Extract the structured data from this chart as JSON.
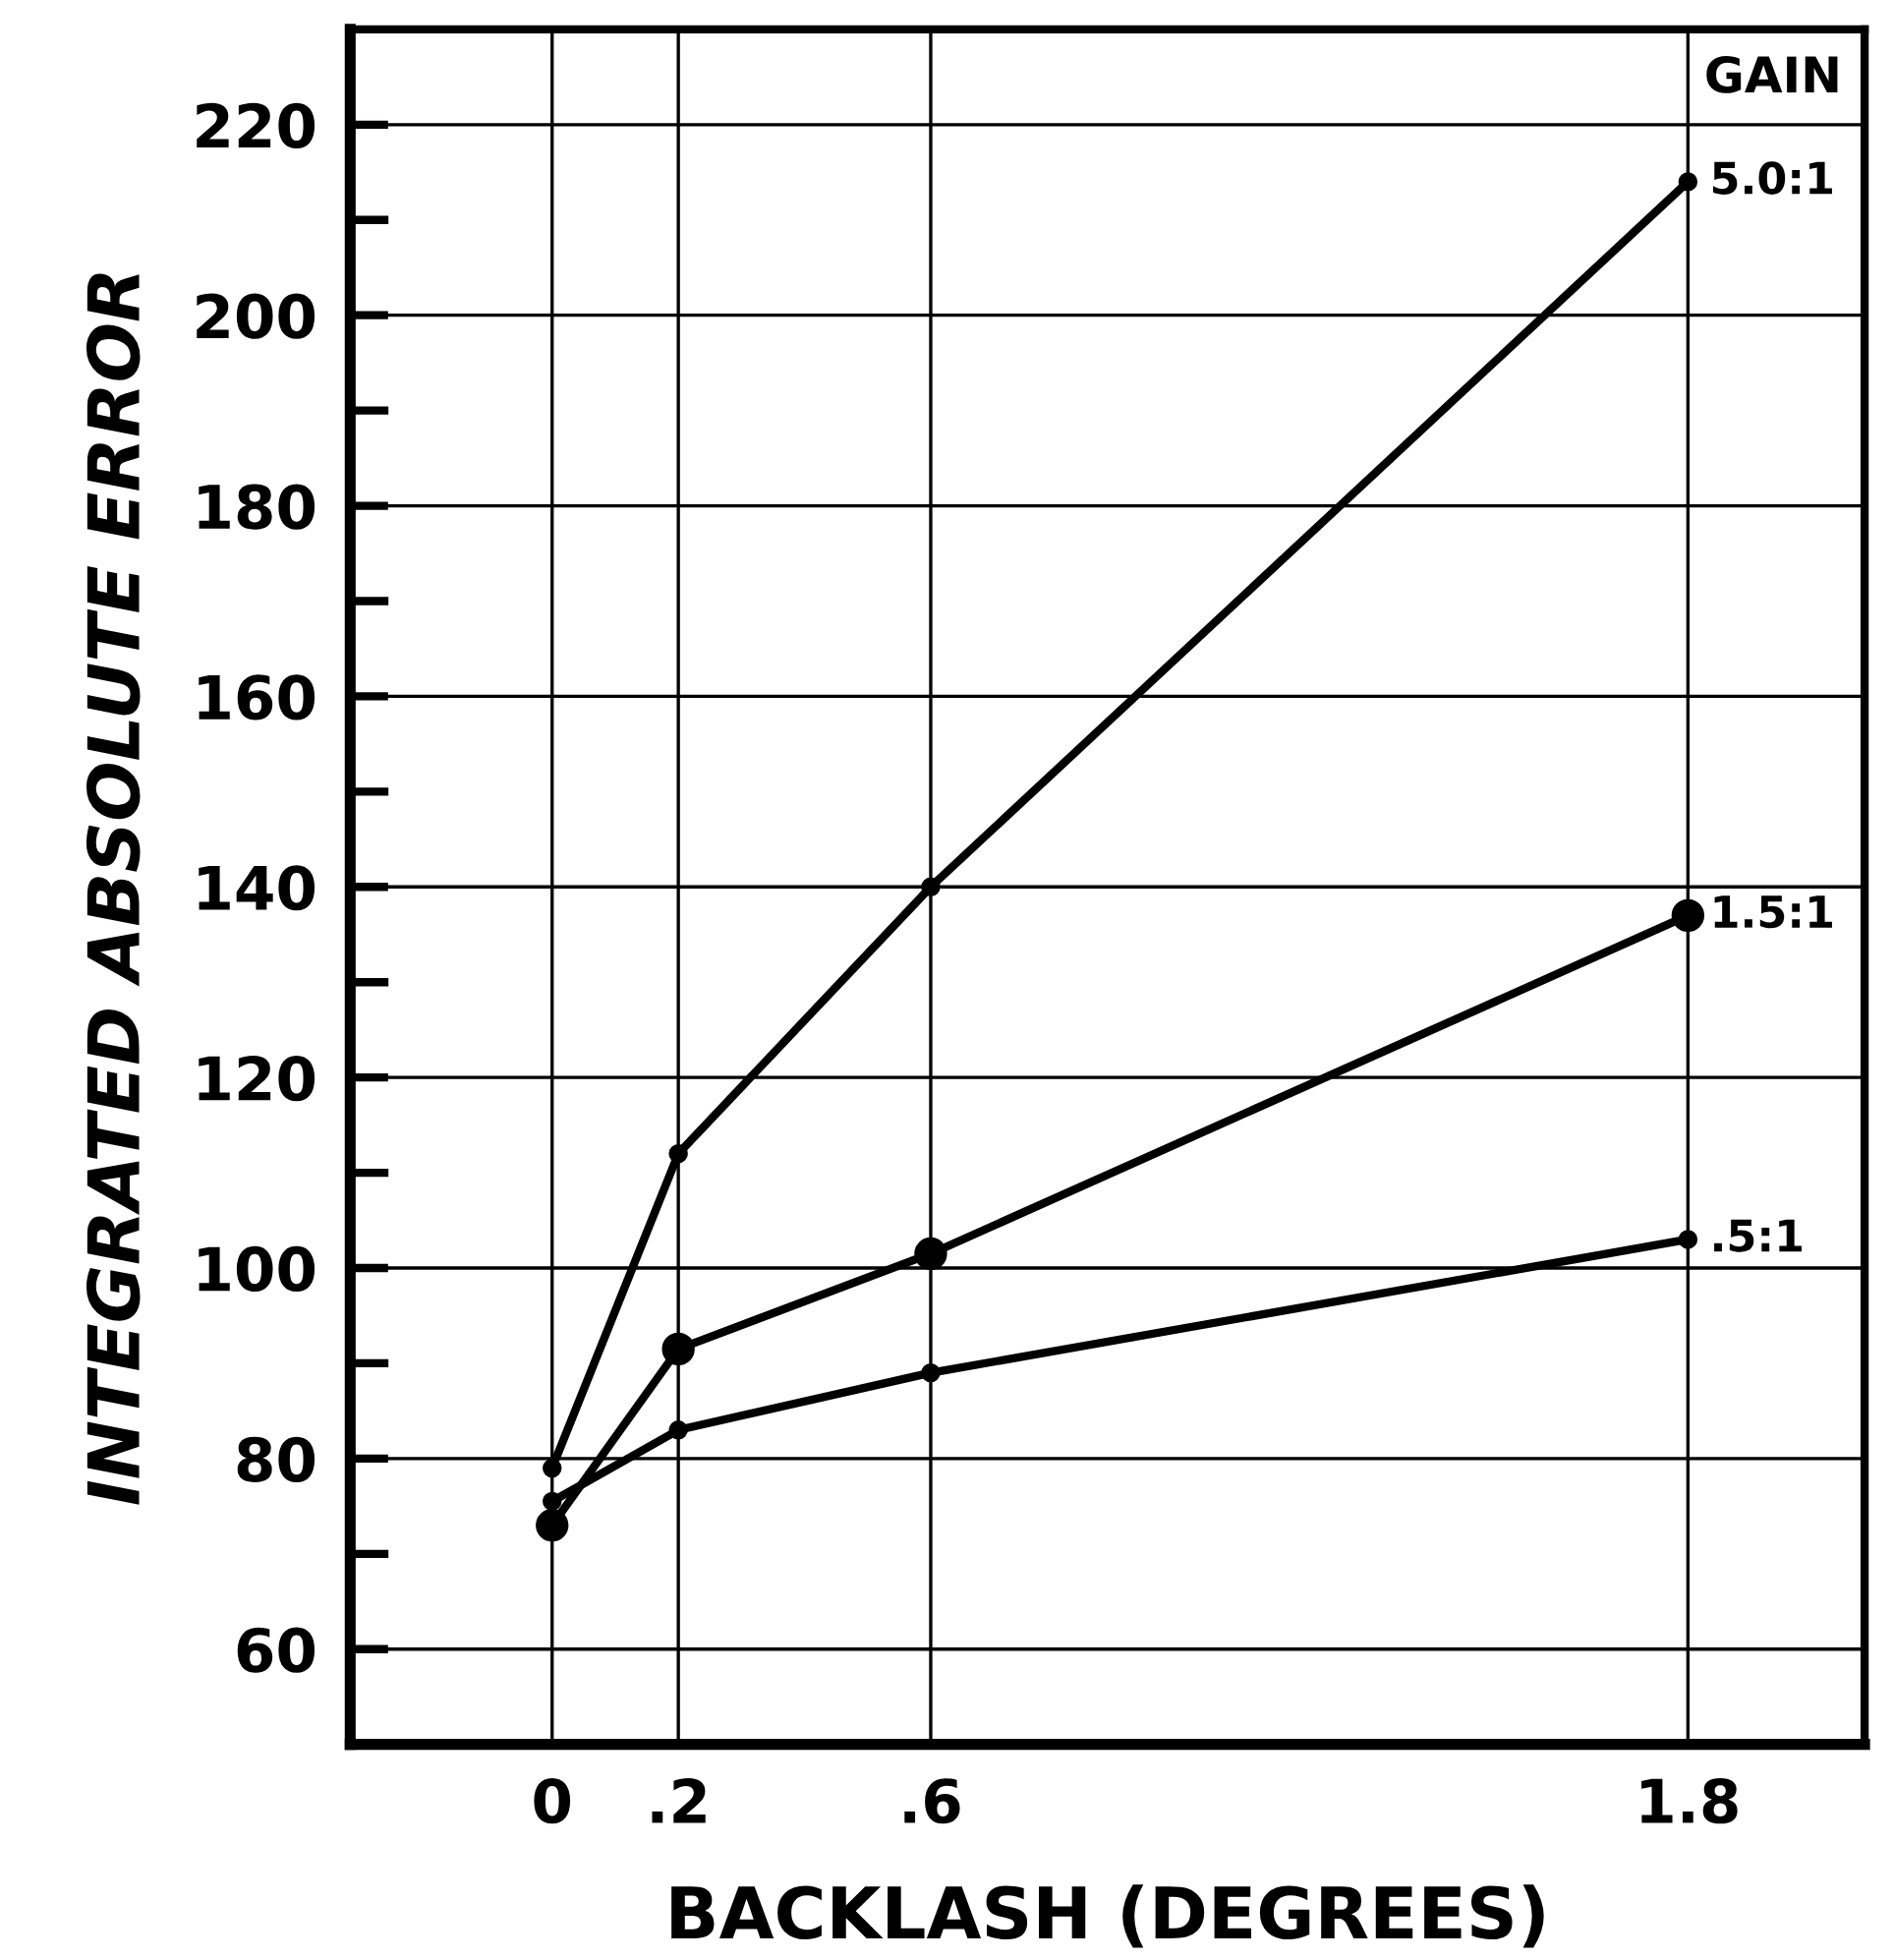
{
  "chart_data": {
    "type": "line",
    "xlabel": "BACKLASH (DEGREES)",
    "ylabel": "INTEGRATED ABSOLUTE ERROR",
    "legend_title": "GAIN",
    "x": [
      0,
      0.2,
      0.6,
      1.8
    ],
    "series": [
      {
        "name": "5.0:1",
        "color": "#000000",
        "values": [
          79,
          112,
          140,
          214
        ]
      },
      {
        "name": "1.5:1",
        "color": "#000000",
        "values": [
          73,
          91.5,
          101.5,
          137
        ]
      },
      {
        "name": ".5:1",
        "color": "#000000",
        "values": [
          75.5,
          83,
          89,
          103
        ]
      }
    ],
    "xlim": [
      -0.32,
      2.08
    ],
    "ylim": [
      50,
      230
    ],
    "xticks": [
      0,
      {
        "value": 0.2,
        "label": ".2"
      },
      {
        "value": 0.6,
        "label": ".6"
      },
      1.8
    ],
    "yticks": [
      60,
      80,
      100,
      120,
      140,
      160,
      180,
      200,
      220
    ],
    "grid": true,
    "legend": false,
    "marker": "circle",
    "line_style": "solid"
  }
}
